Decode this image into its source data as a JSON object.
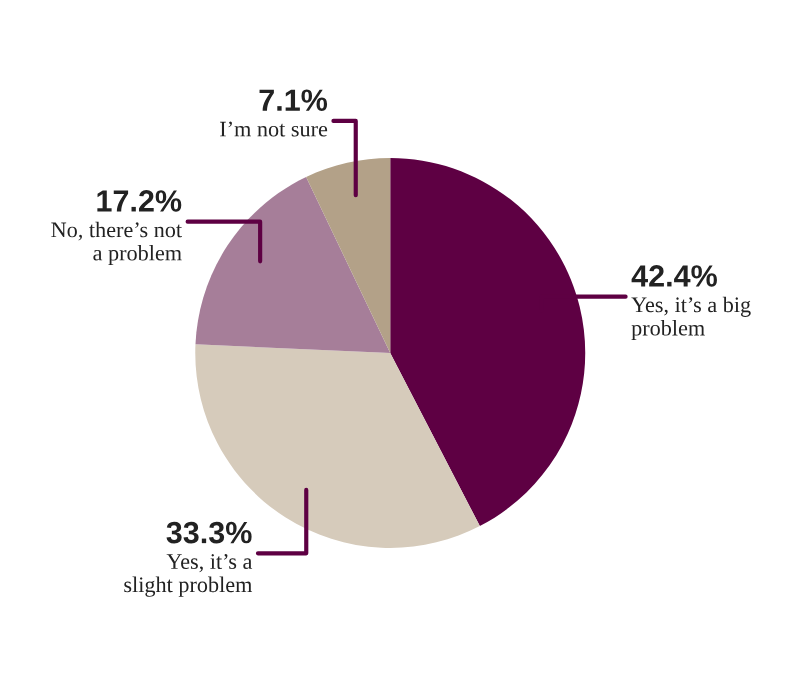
{
  "chart_data": {
    "type": "pie",
    "categories": [
      "Yes, it’s a big problem",
      "Yes, it’s a slight problem",
      "No, there’s not a problem",
      "I’m not sure"
    ],
    "values": [
      42.4,
      33.3,
      17.2,
      7.1
    ],
    "colors": [
      "#5e0043",
      "#d6cbbb",
      "#a67e99",
      "#b3a188"
    ],
    "value_labels": [
      "42.4%",
      "33.3%",
      "17.2%",
      "7.1%"
    ]
  }
}
